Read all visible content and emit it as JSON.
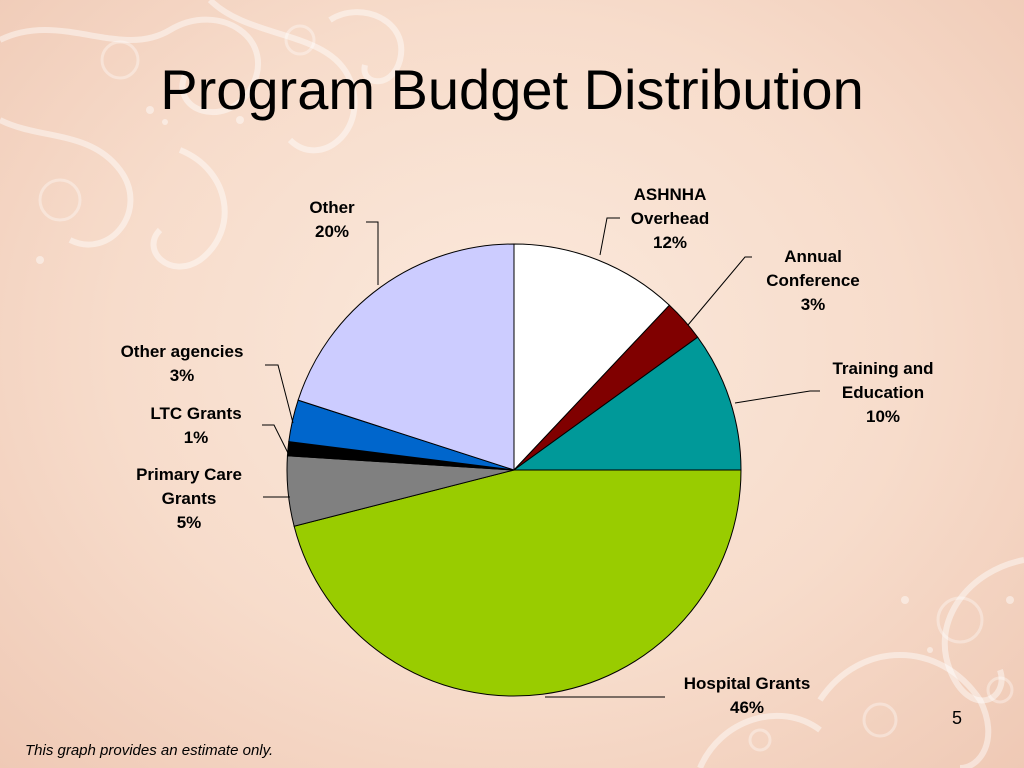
{
  "slide": {
    "title": "Program Budget Distribution",
    "page_number": "5",
    "footnote": "This graph provides an estimate only."
  },
  "colors": {
    "background": "#f7dccb",
    "decor": "#ffffff"
  },
  "chart_data": {
    "type": "pie",
    "title": "",
    "start_angle_deg": 0,
    "direction": "clockwise",
    "slices": [
      {
        "label": [
          "ASHNHA",
          "Overhead",
          "12%"
        ],
        "value": 12,
        "color": "#ffffff"
      },
      {
        "label": [
          "Annual",
          "Conference",
          "3%"
        ],
        "value": 3,
        "color": "#800000"
      },
      {
        "label": [
          "Training and",
          "Education",
          "10%"
        ],
        "value": 10,
        "color": "#009999"
      },
      {
        "label": [
          "Hospital Grants",
          "46%"
        ],
        "value": 46,
        "color": "#99cc00"
      },
      {
        "label": [
          "Primary Care",
          "Grants",
          "5%"
        ],
        "value": 5,
        "color": "#808080"
      },
      {
        "label": [
          "LTC Grants",
          "1%"
        ],
        "value": 1,
        "color": "#000000"
      },
      {
        "label": [
          "Other agencies",
          "3%"
        ],
        "value": 3,
        "color": "#0066cc"
      },
      {
        "label": [
          "Other",
          "20%"
        ],
        "value": 20,
        "color": "#ccccff"
      }
    ]
  }
}
